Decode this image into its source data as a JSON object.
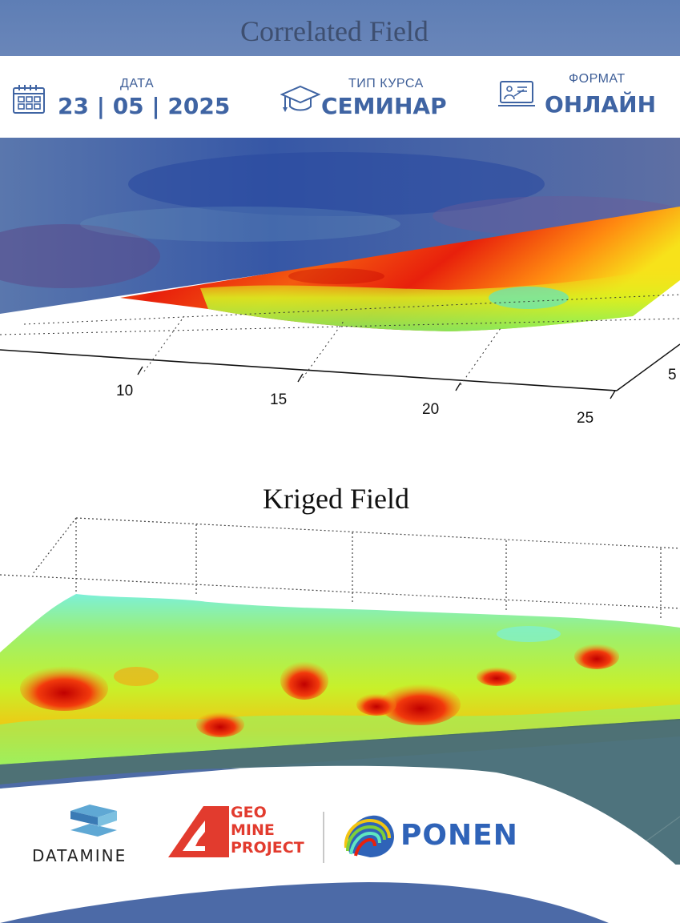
{
  "top_image": {
    "title": "Correlated Field",
    "tick_labels": [
      "10",
      "15",
      "20",
      "25",
      "5"
    ]
  },
  "info": {
    "date": {
      "label": "ДАТА",
      "value": "23 | 05 | 2025",
      "icon": "calendar-icon"
    },
    "course_type": {
      "label": "ТИП КУРСА",
      "value": "СЕМИНАР",
      "icon": "graduation-cap-icon"
    },
    "format": {
      "label": "ФОРМАТ",
      "value": "ОНЛАЙН",
      "icon": "presentation-screen-icon"
    }
  },
  "bottom_image": {
    "title": "Kriged Field"
  },
  "logos": {
    "datamine": "DATAMINE",
    "geo_mine_project": [
      "GEO",
      "MINE",
      "PROJECT"
    ],
    "ponen": "PONEN"
  },
  "colors": {
    "brand_blue": "#3f64a3",
    "overlay_blue": "#4f6fa8",
    "hot": "#e8200c",
    "mid": "#f7e21a",
    "cool": "#5fe6c0",
    "logo_red": "#e23b2e"
  }
}
